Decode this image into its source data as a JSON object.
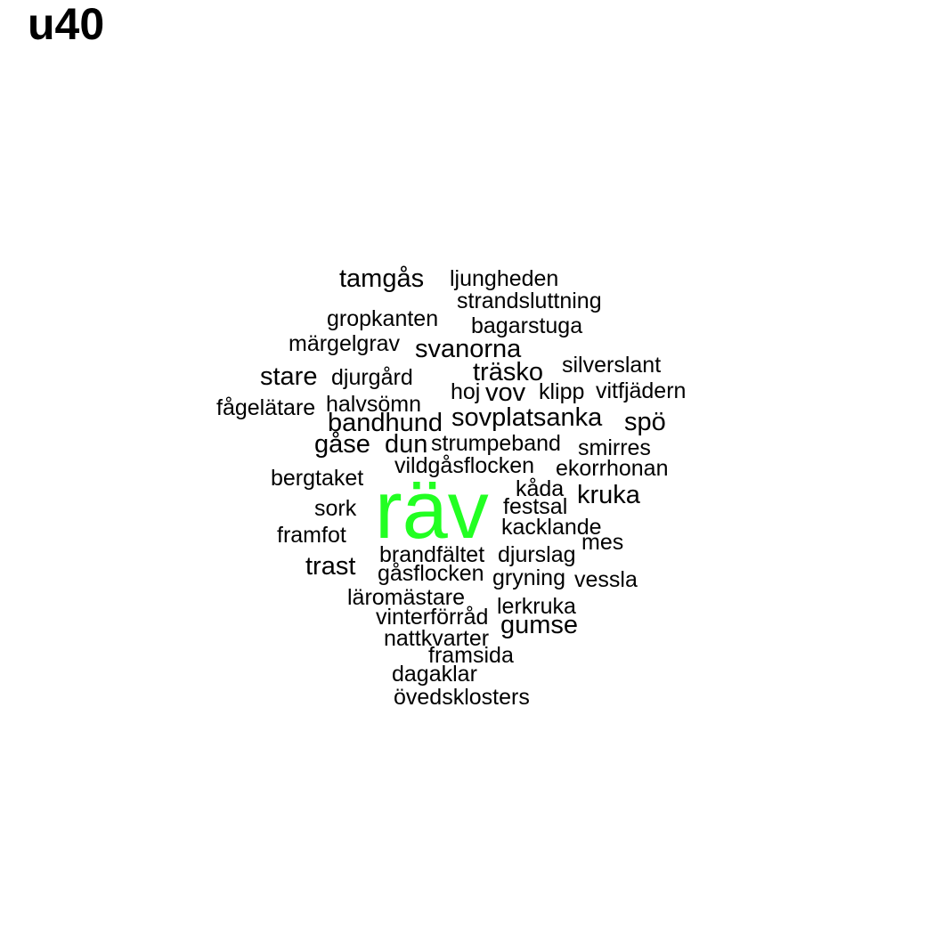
{
  "title": "u40",
  "colors": {
    "highlight": "#22ff22",
    "text": "#000000",
    "background": "#ffffff"
  },
  "words": [
    "tamgås",
    "ljungheden",
    "strandsluttning",
    "gropkanten",
    "bagarstuga",
    "märgelgrav",
    "svanorna",
    "stare",
    "djurgård",
    "träsko",
    "silverslant",
    "hoj",
    "vov",
    "klipp",
    "vitfjädern",
    "fågelätare",
    "halvsömn",
    "bandhund",
    "sovplatsanka",
    "spö",
    "gåse",
    "dun",
    "strumpeband",
    "smirres",
    "vildgåsflocken",
    "ekorrhonan",
    "bergtaket",
    "kåda",
    "kruka",
    "räv",
    "sork",
    "festsal",
    "kacklande",
    "framfot",
    "mes",
    "brandfältet",
    "djurslag",
    "trast",
    "gåsflocken",
    "gryning",
    "vessla",
    "läromästare",
    "lerkruka",
    "vinterförråd",
    "gumse",
    "nattkvarter",
    "framsida",
    "dagaklar",
    "övedsklosters"
  ]
}
